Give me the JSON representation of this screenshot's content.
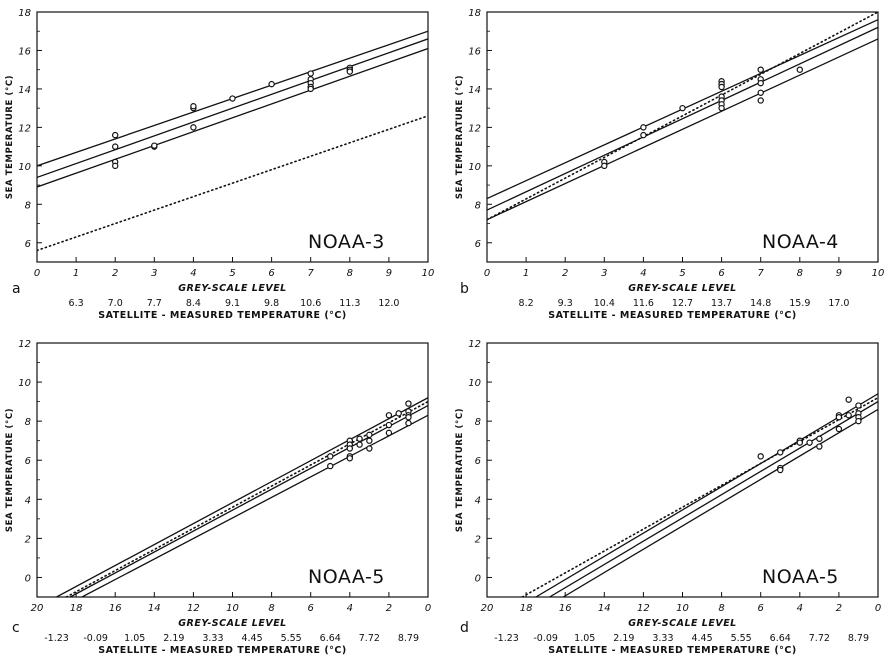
{
  "chart_data": [
    {
      "type": "scatter",
      "panel_label": "a",
      "annotation": "NOAA-3",
      "xlabel": "GREY-SCALE LEVEL",
      "x2label": "SATELLITE - MEASURED TEMPERATURE (°C)",
      "ylabel": "SEA TEMPERATURE (°C)",
      "xlim": [
        0,
        10
      ],
      "ylim": [
        5,
        18
      ],
      "xticks": [
        "0",
        "1",
        "2",
        "3",
        "4",
        "5",
        "6",
        "7",
        "8",
        "9",
        "10"
      ],
      "yticks": [
        "6",
        "8",
        "10",
        "12",
        "14",
        "16",
        "18"
      ],
      "x2ticks": [
        {
          "x": 1,
          "label": "6.3"
        },
        {
          "x": 2,
          "label": "7.0"
        },
        {
          "x": 3,
          "label": "7.7"
        },
        {
          "x": 4,
          "label": "8.4"
        },
        {
          "x": 5,
          "label": "9.1"
        },
        {
          "x": 6,
          "label": "9.8"
        },
        {
          "x": 7,
          "label": "10.6"
        },
        {
          "x": 8,
          "label": "11.3"
        },
        {
          "x": 9,
          "label": "12.0"
        }
      ],
      "series": [
        {
          "points": [
            [
              2,
              11.6
            ],
            [
              2,
              11.0
            ],
            [
              2,
              10.2
            ],
            [
              2,
              10.0
            ],
            [
              3,
              11.0
            ],
            [
              3,
              11.05
            ],
            [
              4,
              13.0
            ],
            [
              4,
              13.1
            ],
            [
              4,
              12.0
            ],
            [
              5,
              13.5
            ],
            [
              6,
              14.25
            ],
            [
              7,
              14.8
            ],
            [
              7,
              14.5
            ],
            [
              7,
              14.3
            ],
            [
              7,
              14.1
            ],
            [
              7,
              14.0
            ],
            [
              8,
              15.1
            ],
            [
              8,
              15.0
            ],
            [
              8,
              14.9
            ]
          ]
        }
      ],
      "lines": [
        {
          "style": "solid",
          "from": [
            0,
            9.4
          ],
          "to": [
            10,
            16.6
          ]
        },
        {
          "style": "solid",
          "from": [
            0,
            10.0
          ],
          "to": [
            10,
            17.0
          ]
        },
        {
          "style": "solid",
          "from": [
            0,
            8.9
          ],
          "to": [
            10,
            16.1
          ]
        },
        {
          "style": "dotted",
          "from": [
            0,
            5.6
          ],
          "to": [
            10,
            12.6
          ]
        }
      ]
    },
    {
      "type": "scatter",
      "panel_label": "b",
      "annotation": "NOAA-4",
      "xlabel": "GREY-SCALE LEVEL",
      "x2label": "SATELLITE - MEASURED TEMPERATURE (°C)",
      "ylabel": "SEA TEMPERATURE (°C)",
      "xlim": [
        0,
        10
      ],
      "ylim": [
        5,
        18
      ],
      "xticks": [
        "0",
        "1",
        "2",
        "3",
        "4",
        "5",
        "6",
        "7",
        "8",
        "9",
        "10"
      ],
      "yticks": [
        "6",
        "8",
        "10",
        "12",
        "14",
        "16",
        "18"
      ],
      "x2ticks": [
        {
          "x": 1,
          "label": "8.2"
        },
        {
          "x": 2,
          "label": "9.3"
        },
        {
          "x": 3,
          "label": "10.4"
        },
        {
          "x": 4,
          "label": "11.6"
        },
        {
          "x": 5,
          "label": "12.7"
        },
        {
          "x": 6,
          "label": "13.7"
        },
        {
          "x": 7,
          "label": "14.8"
        },
        {
          "x": 8,
          "label": "15.9"
        },
        {
          "x": 9,
          "label": "17.0"
        }
      ],
      "series": [
        {
          "points": [
            [
              3,
              10.2
            ],
            [
              3,
              10.0
            ],
            [
              4,
              12.0
            ],
            [
              4,
              11.6
            ],
            [
              5,
              13.0
            ],
            [
              6,
              14.4
            ],
            [
              6,
              14.25
            ],
            [
              6,
              14.1
            ],
            [
              6,
              13.6
            ],
            [
              6,
              13.4
            ],
            [
              6,
              13.2
            ],
            [
              6,
              13.0
            ],
            [
              7,
              15.0
            ],
            [
              7,
              14.5
            ],
            [
              7,
              14.3
            ],
            [
              7,
              13.8
            ],
            [
              7,
              13.4
            ],
            [
              8,
              15.0
            ]
          ]
        }
      ],
      "lines": [
        {
          "style": "solid",
          "from": [
            0,
            7.7
          ],
          "to": [
            10,
            17.2
          ]
        },
        {
          "style": "solid",
          "from": [
            0,
            8.3
          ],
          "to": [
            10,
            17.6
          ]
        },
        {
          "style": "solid",
          "from": [
            0,
            7.2
          ],
          "to": [
            10,
            16.6
          ]
        },
        {
          "style": "dotted",
          "from": [
            0,
            7.2
          ],
          "to": [
            10,
            18.0
          ]
        }
      ]
    },
    {
      "type": "scatter",
      "panel_label": "c",
      "annotation": "NOAA-5",
      "xlabel": "GREY-SCALE LEVEL",
      "x2label": "SATELLITE - MEASURED TEMPERATURE (°C)",
      "ylabel": "SEA TEMPERATURE (°C)",
      "xlim": [
        20,
        0
      ],
      "ylim": [
        -1,
        12
      ],
      "xticks": [
        "20",
        "18",
        "16",
        "14",
        "12",
        "10",
        "8",
        "6",
        "4",
        "2",
        "0"
      ],
      "yticks": [
        "0",
        "2",
        "4",
        "6",
        "8",
        "10",
        "12"
      ],
      "x2ticks": [
        {
          "x": 19,
          "label": "-1.23"
        },
        {
          "x": 17,
          "label": "-0.09"
        },
        {
          "x": 15,
          "label": "1.05"
        },
        {
          "x": 13,
          "label": "2.19"
        },
        {
          "x": 11,
          "label": "3.33"
        },
        {
          "x": 9,
          "label": "4.45"
        },
        {
          "x": 7,
          "label": "5.55"
        },
        {
          "x": 5,
          "label": "6.64"
        },
        {
          "x": 3,
          "label": "7.72"
        },
        {
          "x": 1,
          "label": "8.79"
        }
      ],
      "series": [
        {
          "points": [
            [
              5,
              6.2
            ],
            [
              5,
              5.7
            ],
            [
              4,
              7.0
            ],
            [
              4,
              6.8
            ],
            [
              4,
              6.6
            ],
            [
              4,
              6.2
            ],
            [
              4,
              6.1
            ],
            [
              3.5,
              7.1
            ],
            [
              3.5,
              6.8
            ],
            [
              3,
              7.3
            ],
            [
              3,
              7.0
            ],
            [
              3,
              6.6
            ],
            [
              2,
              8.3
            ],
            [
              2,
              7.8
            ],
            [
              2,
              7.4
            ],
            [
              1.5,
              8.4
            ],
            [
              1,
              8.9
            ],
            [
              1,
              8.5
            ],
            [
              1,
              8.3
            ],
            [
              1,
              8.2
            ],
            [
              1,
              7.9
            ]
          ]
        }
      ],
      "lines": [
        {
          "style": "solid",
          "from": [
            18.3,
            -1
          ],
          "to": [
            0,
            8.8
          ]
        },
        {
          "style": "solid",
          "from": [
            19.0,
            -1
          ],
          "to": [
            0,
            9.2
          ]
        },
        {
          "style": "solid",
          "from": [
            17.7,
            -1
          ],
          "to": [
            0,
            8.3
          ]
        },
        {
          "style": "dotted",
          "from": [
            18.5,
            -1
          ],
          "to": [
            0,
            9.0
          ]
        }
      ]
    },
    {
      "type": "scatter",
      "panel_label": "d",
      "annotation": "NOAA-5",
      "xlabel": "GREY-SCALE LEVEL",
      "x2label": "SATELLITE - MEASURED TEMPERATURE (°C)",
      "ylabel": "SEA TEMPERATURE (°C)",
      "xlim": [
        20,
        0
      ],
      "ylim": [
        -1,
        12
      ],
      "xticks": [
        "20",
        "18",
        "16",
        "14",
        "12",
        "10",
        "8",
        "6",
        "4",
        "2",
        "0"
      ],
      "yticks": [
        "0",
        "2",
        "4",
        "6",
        "8",
        "10",
        "12"
      ],
      "x2ticks": [
        {
          "x": 19,
          "label": "-1.23"
        },
        {
          "x": 17,
          "label": "-0.09"
        },
        {
          "x": 15,
          "label": "1.05"
        },
        {
          "x": 13,
          "label": "2.19"
        },
        {
          "x": 11,
          "label": "3.33"
        },
        {
          "x": 9,
          "label": "4.45"
        },
        {
          "x": 7,
          "label": "5.55"
        },
        {
          "x": 5,
          "label": "6.64"
        },
        {
          "x": 3,
          "label": "7.72"
        },
        {
          "x": 1,
          "label": "8.79"
        }
      ],
      "series": [
        {
          "points": [
            [
              6,
              6.2
            ],
            [
              5,
              6.4
            ],
            [
              5,
              5.6
            ],
            [
              5,
              5.5
            ],
            [
              4,
              7.0
            ],
            [
              4,
              6.9
            ],
            [
              3.5,
              6.9
            ],
            [
              3,
              7.1
            ],
            [
              3,
              6.7
            ],
            [
              2,
              8.3
            ],
            [
              2,
              8.2
            ],
            [
              2,
              7.6
            ],
            [
              1.5,
              8.3
            ],
            [
              1,
              8.8
            ],
            [
              1,
              8.4
            ],
            [
              1,
              8.2
            ],
            [
              1,
              8.0
            ],
            [
              1.5,
              9.1
            ]
          ]
        }
      ],
      "lines": [
        {
          "style": "solid",
          "from": [
            16.8,
            -1
          ],
          "to": [
            0,
            9.0
          ]
        },
        {
          "style": "solid",
          "from": [
            17.5,
            -1
          ],
          "to": [
            0,
            9.4
          ]
        },
        {
          "style": "solid",
          "from": [
            16.1,
            -1
          ],
          "to": [
            0,
            8.6
          ]
        },
        {
          "style": "dotted",
          "from": [
            18.2,
            -1
          ],
          "to": [
            0,
            9.2
          ]
        }
      ]
    }
  ]
}
